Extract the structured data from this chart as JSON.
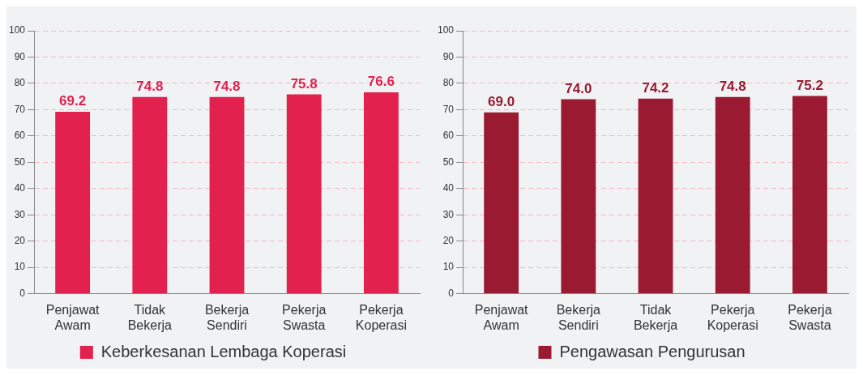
{
  "chart_data": [
    {
      "type": "bar",
      "categories": [
        "Penjawat Awam",
        "Tidak Bekerja",
        "Bekerja Sendiri",
        "Pekerja Swasta",
        "Pekerja Koperasi"
      ],
      "series": [
        {
          "name": "Keberkesanan Lembaga Koperasi",
          "color": "#e3214f",
          "values": [
            69.2,
            74.8,
            74.8,
            75.8,
            76.6
          ],
          "value_labels": [
            "69.2",
            "74.8",
            "74.8",
            "75.8",
            "76.6"
          ]
        }
      ],
      "ylim": [
        0,
        100
      ],
      "yticks": [
        0,
        10,
        20,
        30,
        40,
        50,
        60,
        70,
        80,
        90,
        100
      ],
      "grid": "y",
      "legend": "bottom"
    },
    {
      "type": "bar",
      "categories": [
        "Penjawat Awam",
        "Bekerja Sendiri",
        "Tidak Bekerja",
        "Pekerja Koperasi",
        "Pekerja Swasta"
      ],
      "series": [
        {
          "name": "Pengawasan Pengurusan",
          "color": "#9a1a32",
          "values": [
            69.0,
            74.0,
            74.2,
            74.8,
            75.2
          ],
          "value_labels": [
            "69.0",
            "74.0",
            "74.2",
            "74.8",
            "75.2"
          ]
        }
      ],
      "ylim": [
        0,
        100
      ],
      "yticks": [
        0,
        10,
        20,
        30,
        40,
        50,
        60,
        70,
        80,
        90,
        100
      ],
      "grid": "y",
      "legend": "bottom"
    }
  ]
}
